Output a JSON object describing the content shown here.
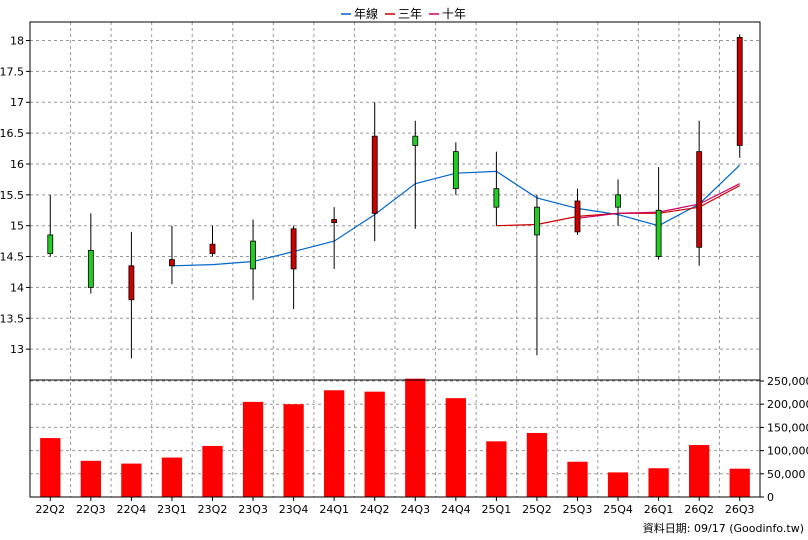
{
  "chart_data": {
    "type": "candlestick",
    "legend": [
      {
        "name": "年線",
        "color": "#0066cc"
      },
      {
        "name": "三年",
        "color": "#cc0000"
      },
      {
        "name": "十年",
        "color": "#cc0066"
      }
    ],
    "categories": [
      "22Q2",
      "22Q3",
      "22Q4",
      "23Q1",
      "23Q2",
      "23Q3",
      "23Q4",
      "24Q1",
      "24Q2",
      "24Q3",
      "24Q4",
      "25Q1",
      "25Q2",
      "25Q3",
      "25Q4",
      "26Q1",
      "26Q2",
      "26Q3"
    ],
    "price_axis": {
      "ticks": [
        "13",
        "13.5",
        "14",
        "14.5",
        "15",
        "15.5",
        "16",
        "16.5",
        "17",
        "17.5",
        "18"
      ],
      "ylim": [
        12.5,
        18.3
      ]
    },
    "candles": [
      {
        "open": 14.85,
        "close": 14.55,
        "high": 15.5,
        "low": 14.5
      },
      {
        "open": 14.6,
        "close": 14.0,
        "high": 15.2,
        "low": 13.9
      },
      {
        "open": 13.8,
        "close": 14.35,
        "high": 14.9,
        "low": 12.85
      },
      {
        "open": 14.35,
        "close": 14.45,
        "high": 15.0,
        "low": 14.05
      },
      {
        "open": 14.55,
        "close": 14.7,
        "high": 15.0,
        "low": 14.5
      },
      {
        "open": 14.75,
        "close": 14.3,
        "high": 15.1,
        "low": 13.8
      },
      {
        "open": 14.3,
        "close": 14.95,
        "high": 15.0,
        "low": 13.65
      },
      {
        "open": 15.05,
        "close": 15.1,
        "high": 15.3,
        "low": 14.3
      },
      {
        "open": 15.2,
        "close": 16.45,
        "high": 17.0,
        "low": 14.75
      },
      {
        "open": 16.45,
        "close": 16.3,
        "high": 16.7,
        "low": 14.95
      },
      {
        "open": 16.2,
        "close": 15.6,
        "high": 16.35,
        "low": 15.5
      },
      {
        "open": 15.6,
        "close": 15.3,
        "high": 16.2,
        "low": 15.0
      },
      {
        "open": 15.3,
        "close": 14.85,
        "high": 15.5,
        "low": 12.9
      },
      {
        "open": 14.9,
        "close": 15.4,
        "high": 15.6,
        "low": 14.85
      },
      {
        "open": 15.5,
        "close": 15.3,
        "high": 15.75,
        "low": 15.0
      },
      {
        "open": 15.25,
        "close": 14.5,
        "high": 15.95,
        "low": 14.45
      },
      {
        "open": 14.65,
        "close": 16.2,
        "high": 16.7,
        "low": 14.35
      },
      {
        "open": 16.3,
        "close": 18.05,
        "high": 18.1,
        "low": 16.1
      }
    ],
    "up_color": "#cc0000",
    "down_color": "#22cc22",
    "annual_line": [
      null,
      null,
      null,
      14.35,
      14.37,
      14.42,
      14.58,
      14.75,
      15.18,
      15.68,
      15.85,
      15.88,
      15.45,
      15.28,
      15.18,
      15.0,
      15.35,
      15.98
    ],
    "three_year_line": [
      null,
      null,
      null,
      null,
      null,
      null,
      null,
      null,
      null,
      null,
      null,
      15.0,
      15.02,
      15.15,
      15.2,
      15.2,
      15.3,
      15.65
    ],
    "ten_year_line": [
      null,
      null,
      null,
      null,
      null,
      null,
      null,
      null,
      null,
      null,
      null,
      null,
      null,
      15.12,
      15.2,
      15.22,
      15.35,
      15.68
    ],
    "volume_axis": {
      "ticks": [
        "0",
        "50,000",
        "100,000",
        "150,000",
        "200,000",
        "250,000"
      ],
      "ylim": [
        0,
        250000
      ]
    },
    "volumes": [
      127000,
      78000,
      72000,
      85000,
      110000,
      205000,
      200000,
      230000,
      227000,
      255000,
      213000,
      120000,
      138000,
      76000,
      53000,
      62000,
      112000,
      61000
    ],
    "volume_color": "#ff0000"
  },
  "footer": {
    "date_label": "資料日期: 09/17  (Goodinfo.tw)"
  }
}
